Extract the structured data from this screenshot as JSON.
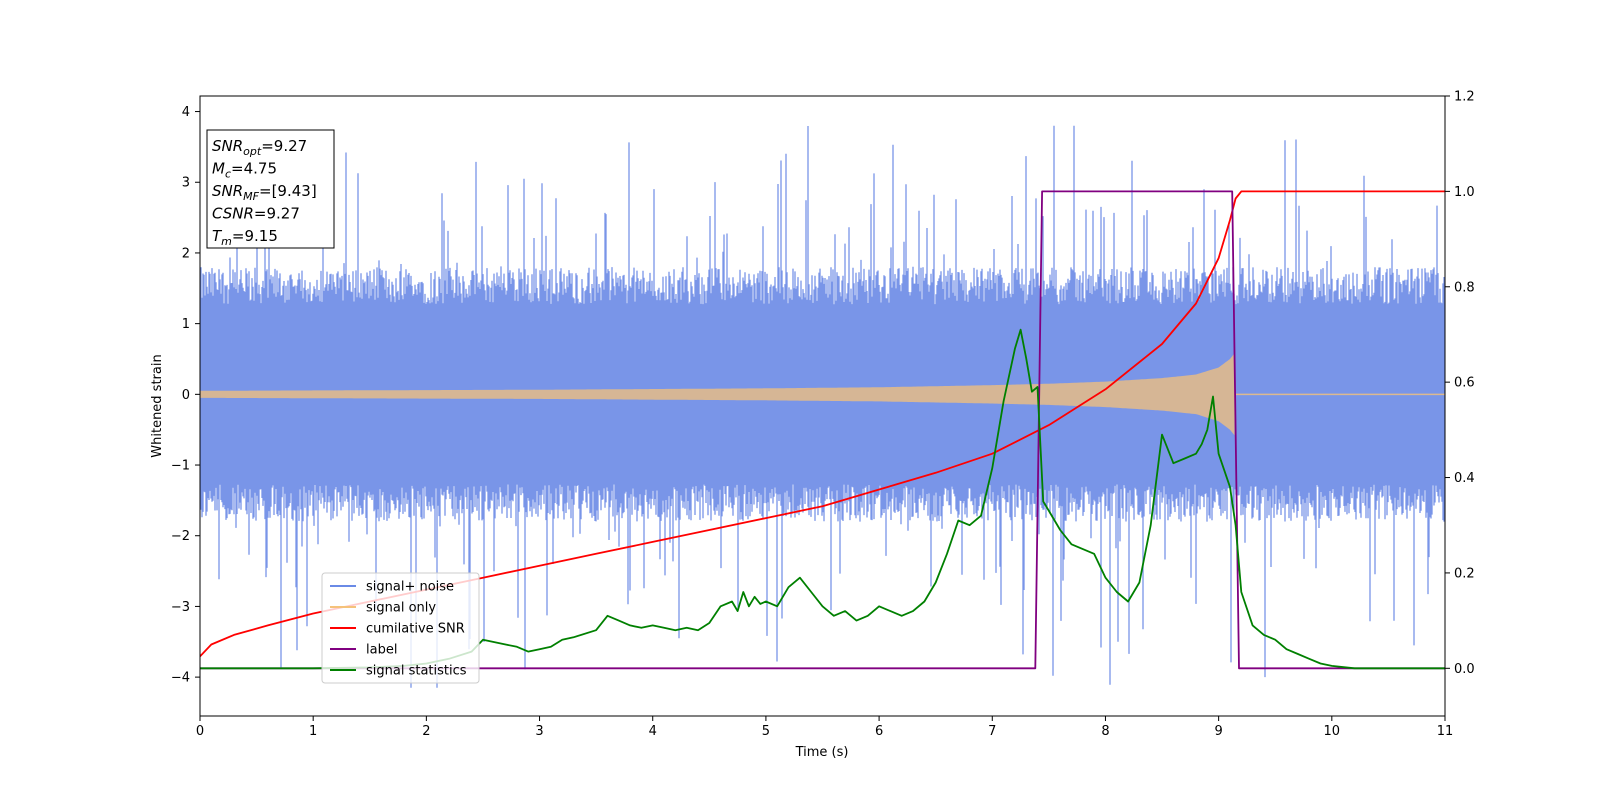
{
  "chart_data": {
    "type": "line",
    "title": "",
    "xlabel": "Time (s)",
    "ylabel": "Whitened strain",
    "xlim": [
      0,
      11
    ],
    "ylim": [
      -4.55,
      4.22
    ],
    "y2lim": [
      -0.1,
      1.2
    ],
    "xticks": [
      "0",
      "1",
      "2",
      "3",
      "4",
      "5",
      "6",
      "7",
      "8",
      "9",
      "10",
      "11"
    ],
    "yticks": [
      "−4",
      "−3",
      "−2",
      "−1",
      "0",
      "1",
      "2",
      "3",
      "4"
    ],
    "y2ticks": [
      "0.0",
      "0.2",
      "0.4",
      "0.6",
      "0.8",
      "1.0",
      "1.2"
    ],
    "grid": false,
    "legend_position": "lower-left",
    "info_box": {
      "position": "upper-left",
      "lines": [
        {
          "sym": "SNR",
          "sub": "opt",
          "val": "=9.27"
        },
        {
          "sym": "M",
          "sub": "c",
          "val": "=4.75"
        },
        {
          "sym": "SNR",
          "sub": "MF",
          "val": "=[9.43]"
        },
        {
          "sym": "CSNR",
          "sub": "",
          "val": "=9.27"
        },
        {
          "sym": "T",
          "sub": "m",
          "val": "=9.15"
        }
      ]
    },
    "series": [
      {
        "name": "signal+ noise",
        "color": "#6a8ae6",
        "axis": "left",
        "kind": "noise_band",
        "description_values": {
          "band_upper_typical": 1.5,
          "band_lower_typical": -1.5,
          "peak_max": 3.8,
          "peak_min": -4.15
        }
      },
      {
        "name": "signal only",
        "color": "#f5c27a",
        "axis": "left",
        "kind": "chirp_envelope",
        "envelope_x": [
          0,
          1,
          2,
          3,
          4,
          5,
          6,
          7,
          7.5,
          8,
          8.5,
          8.8,
          9.0,
          9.1,
          9.15
        ],
        "envelope_amp": [
          0.05,
          0.055,
          0.06,
          0.065,
          0.075,
          0.085,
          0.1,
          0.13,
          0.15,
          0.18,
          0.23,
          0.28,
          0.38,
          0.5,
          0.6
        ]
      },
      {
        "name": "cumilative SNR",
        "color": "#ff0000",
        "axis": "right",
        "x": [
          0,
          0.1,
          0.3,
          0.6,
          1.0,
          1.5,
          2,
          2.5,
          3,
          3.5,
          4,
          4.5,
          5,
          5.5,
          6,
          6.5,
          7,
          7.5,
          8,
          8.5,
          8.8,
          9.0,
          9.1,
          9.15,
          9.2,
          11
        ],
        "y": [
          0.025,
          0.05,
          0.07,
          0.09,
          0.115,
          0.14,
          0.165,
          0.19,
          0.215,
          0.24,
          0.265,
          0.29,
          0.315,
          0.34,
          0.375,
          0.41,
          0.45,
          0.51,
          0.585,
          0.68,
          0.765,
          0.86,
          0.94,
          0.985,
          1.0,
          1.0
        ]
      },
      {
        "name": "label",
        "color": "#800080",
        "axis": "right",
        "x": [
          0,
          7.38,
          7.44,
          9.12,
          9.18,
          11
        ],
        "y": [
          0,
          0,
          1,
          1,
          0,
          0
        ]
      },
      {
        "name": "signal statistics",
        "color": "#008000",
        "axis": "right",
        "x": [
          0,
          0.5,
          1.0,
          1.5,
          1.8,
          2.0,
          2.2,
          2.4,
          2.5,
          2.6,
          2.7,
          2.8,
          2.9,
          3.0,
          3.1,
          3.2,
          3.3,
          3.5,
          3.6,
          3.7,
          3.8,
          3.9,
          4.0,
          4.1,
          4.2,
          4.3,
          4.4,
          4.5,
          4.6,
          4.7,
          4.75,
          4.8,
          4.85,
          4.9,
          4.95,
          5.0,
          5.1,
          5.2,
          5.3,
          5.4,
          5.5,
          5.6,
          5.7,
          5.8,
          5.9,
          6.0,
          6.1,
          6.2,
          6.3,
          6.4,
          6.5,
          6.6,
          6.7,
          6.8,
          6.9,
          7.0,
          7.1,
          7.2,
          7.25,
          7.3,
          7.35,
          7.4,
          7.45,
          7.5,
          7.6,
          7.7,
          7.8,
          7.9,
          8.0,
          8.1,
          8.2,
          8.3,
          8.4,
          8.5,
          8.6,
          8.7,
          8.8,
          8.85,
          8.9,
          8.95,
          9.0,
          9.1,
          9.15,
          9.2,
          9.3,
          9.4,
          9.5,
          9.6,
          9.7,
          9.8,
          9.9,
          10.0,
          10.2,
          10.5,
          11.0
        ],
        "y": [
          0.0,
          0.0,
          0.0,
          0.002,
          0.005,
          0.01,
          0.02,
          0.035,
          0.06,
          0.055,
          0.05,
          0.045,
          0.035,
          0.04,
          0.045,
          0.06,
          0.065,
          0.08,
          0.11,
          0.1,
          0.09,
          0.085,
          0.09,
          0.085,
          0.08,
          0.085,
          0.08,
          0.095,
          0.13,
          0.14,
          0.12,
          0.16,
          0.13,
          0.15,
          0.135,
          0.14,
          0.13,
          0.17,
          0.19,
          0.16,
          0.13,
          0.11,
          0.12,
          0.1,
          0.11,
          0.13,
          0.12,
          0.11,
          0.12,
          0.14,
          0.18,
          0.24,
          0.31,
          0.3,
          0.32,
          0.42,
          0.56,
          0.67,
          0.71,
          0.65,
          0.58,
          0.59,
          0.35,
          0.33,
          0.29,
          0.26,
          0.25,
          0.24,
          0.19,
          0.16,
          0.14,
          0.18,
          0.3,
          0.49,
          0.43,
          0.44,
          0.45,
          0.47,
          0.5,
          0.57,
          0.45,
          0.38,
          0.3,
          0.16,
          0.09,
          0.07,
          0.06,
          0.04,
          0.03,
          0.02,
          0.01,
          0.005,
          0.0,
          0.0,
          0.0
        ]
      }
    ]
  }
}
